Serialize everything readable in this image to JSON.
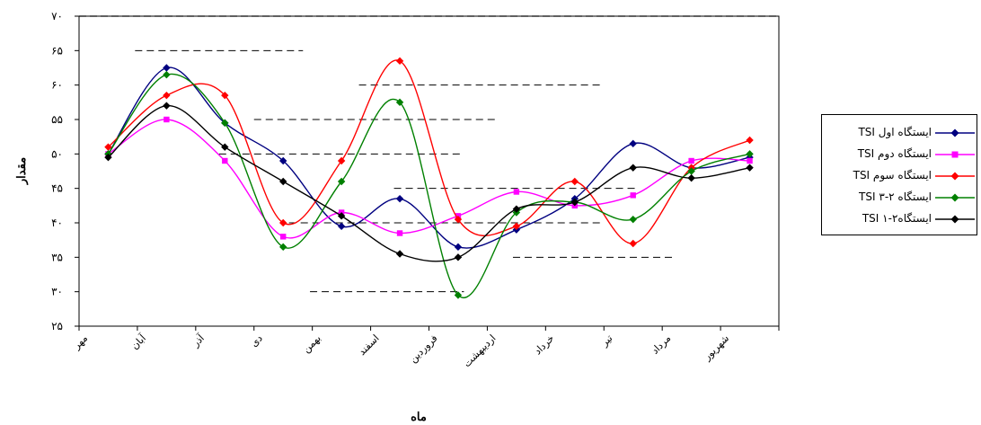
{
  "chart_data": {
    "type": "line",
    "xlabel": "ماه",
    "ylabel": "مقدار",
    "ylim": [
      25,
      70
    ],
    "yticks": [
      25,
      30,
      35,
      40,
      45,
      50,
      55,
      60,
      65,
      70
    ],
    "ytick_labels": [
      "۲۵",
      "۳۰",
      "۳۵",
      "۴۰",
      "۴۵",
      "۵۰",
      "۵۵",
      "۶۰",
      "۶۵",
      "۷۰"
    ],
    "categories": [
      "مهر",
      "آبان",
      "آذر",
      "دی",
      "بهمن",
      "اسفند",
      "فروردین",
      "اردیبهشت",
      "خرداد",
      "تیر",
      "مرداد",
      "شهریور"
    ],
    "legend_position": "right",
    "series": [
      {
        "name": "ایستگاه اول TSI",
        "color": "#000080",
        "marker": "diamond",
        "values": [
          50.0,
          62.5,
          54.5,
          49.0,
          39.5,
          43.5,
          36.5,
          39.0,
          43.5,
          51.5,
          48.0,
          49.5
        ]
      },
      {
        "name": "ایستگاه دوم TSI",
        "color": "#ff00ff",
        "marker": "square",
        "values": [
          50.0,
          55.0,
          49.0,
          38.0,
          41.5,
          38.5,
          41.0,
          44.5,
          42.5,
          44.0,
          49.0,
          49.0
        ]
      },
      {
        "name": "ایستگاه سوم TSI",
        "color": "#ff0000",
        "marker": "diamond",
        "values": [
          51.0,
          58.5,
          58.5,
          40.0,
          49.0,
          63.5,
          40.5,
          39.5,
          46.0,
          37.0,
          48.0,
          52.0
        ]
      },
      {
        "name": "ایستگاه ۲-۳ TSI",
        "color": "#008000",
        "marker": "diamond",
        "values": [
          50.0,
          61.5,
          54.5,
          36.5,
          46.0,
          57.5,
          29.5,
          41.5,
          43.0,
          40.5,
          47.5,
          50.0
        ]
      },
      {
        "name": "ایستگاه۲-۱ TSI",
        "color": "#000000",
        "marker": "diamond",
        "values": [
          49.5,
          57.0,
          51.0,
          46.0,
          41.0,
          35.5,
          35.0,
          42.0,
          43.0,
          48.0,
          46.5,
          48.0
        ]
      }
    ]
  }
}
